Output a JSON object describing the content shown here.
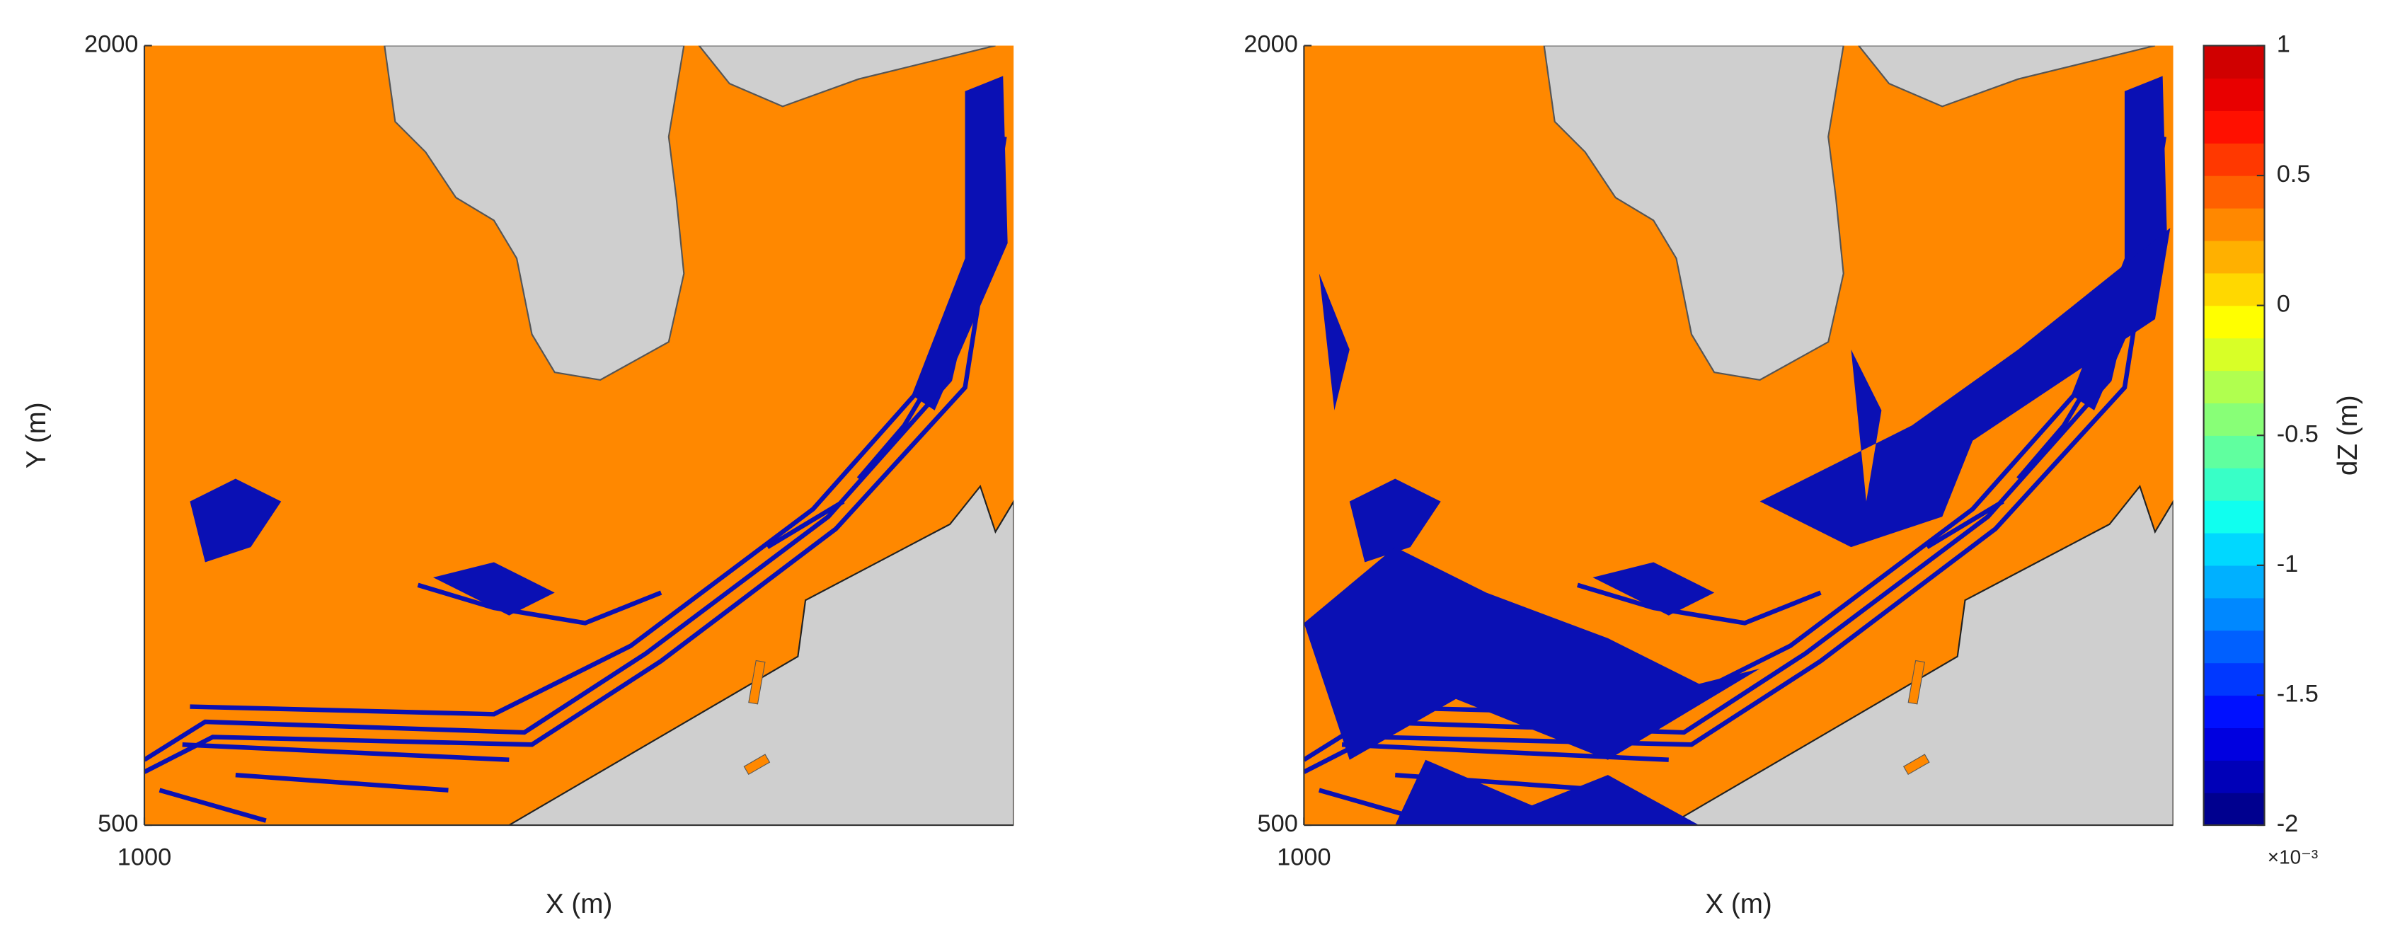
{
  "chart_data": [
    {
      "type": "map",
      "xlabel": "X (m)",
      "ylabel": "Y (m)",
      "xlim": [
        1000,
        2670
      ],
      "ylim": [
        500,
        2000
      ],
      "xticks": [
        1000
      ],
      "yticks": [
        500,
        2000
      ]
    },
    {
      "type": "map",
      "xlabel": "X (m)",
      "xlim": [
        1000,
        2670
      ],
      "ylim": [
        500,
        2000
      ],
      "xticks": [
        1000
      ],
      "yticks": [
        500,
        2000
      ],
      "colorbar": {
        "label": "dZ (m)",
        "multiplier_label": "×10⁻³",
        "lim": [
          -2,
          1
        ],
        "ticks": [
          -2,
          -1.5,
          -1,
          -0.5,
          0,
          0.5,
          1
        ],
        "colors": [
          "#00008f",
          "#0000b8",
          "#0000e0",
          "#0010ff",
          "#0038ff",
          "#0060ff",
          "#0088ff",
          "#00b0ff",
          "#00d8ff",
          "#10ffef",
          "#38ffc7",
          "#60ff9f",
          "#88ff77",
          "#b0ff4f",
          "#d8ff27",
          "#ffff00",
          "#ffd800",
          "#ffb000",
          "#ff8800",
          "#ff6000",
          "#ff3800",
          "#ff1000",
          "#e80000",
          "#d00000"
        ]
      }
    }
  ]
}
